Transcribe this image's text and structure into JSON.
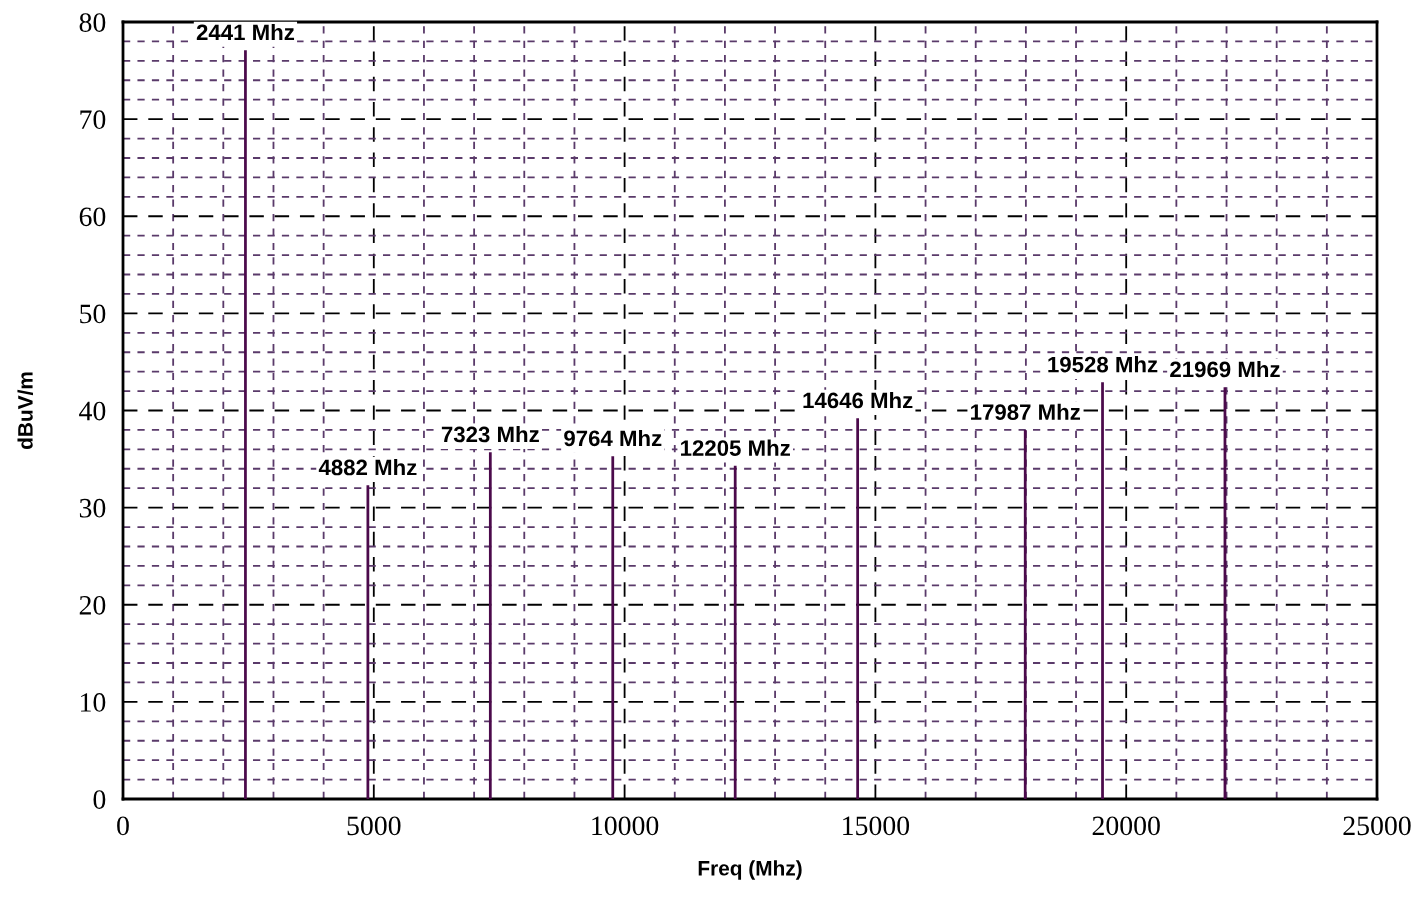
{
  "chart_data": {
    "type": "bar",
    "xlabel": "Freq (Mhz)",
    "ylabel": "dBuV/m",
    "x": [
      2441,
      4882,
      7323,
      9764,
      12205,
      14646,
      17987,
      19528,
      21969
    ],
    "values": [
      77.1,
      32.3,
      35.7,
      35.3,
      34.3,
      39.2,
      38.0,
      42.9,
      42.4
    ],
    "color": "#4b0a4b",
    "xlim": [
      0,
      25000
    ],
    "xticks": [
      0,
      {
        "value": 1000,
        "label": null
      },
      {
        "value": 2000,
        "label": null
      },
      {
        "value": 3000,
        "label": null
      },
      {
        "value": 4000,
        "label": null
      },
      5000,
      {
        "value": 6000,
        "label": null
      },
      {
        "value": 7000,
        "label": null
      },
      {
        "value": 8000,
        "label": null
      },
      {
        "value": 9000,
        "label": null
      },
      10000,
      {
        "value": 11000,
        "label": null
      },
      {
        "value": 12000,
        "label": null
      },
      {
        "value": 13000,
        "label": null
      },
      {
        "value": 14000,
        "label": null
      },
      15000,
      {
        "value": 16000,
        "label": null
      },
      {
        "value": 17000,
        "label": null
      },
      {
        "value": 18000,
        "label": null
      },
      {
        "value": 19000,
        "label": null
      },
      20000,
      {
        "value": 21000,
        "label": null
      },
      {
        "value": 22000,
        "label": null
      },
      {
        "value": 23000,
        "label": null
      },
      {
        "value": 24000,
        "label": null
      },
      25000
    ],
    "ylim": [
      0,
      80
    ],
    "yticks": [
      0,
      {
        "value": 2,
        "label": null
      },
      {
        "value": 4,
        "label": null
      },
      {
        "value": 6,
        "label": null
      },
      {
        "value": 8,
        "label": null
      },
      10,
      {
        "value": 12,
        "label": null
      },
      {
        "value": 14,
        "label": null
      },
      {
        "value": 16,
        "label": null
      },
      {
        "value": 18,
        "label": null
      },
      20,
      {
        "value": 22,
        "label": null
      },
      {
        "value": 24,
        "label": null
      },
      {
        "value": 26,
        "label": null
      },
      {
        "value": 28,
        "label": null
      },
      30,
      {
        "value": 32,
        "label": null
      },
      {
        "value": 34,
        "label": null
      },
      {
        "value": 36,
        "label": null
      },
      {
        "value": 38,
        "label": null
      },
      40,
      {
        "value": 42,
        "label": null
      },
      {
        "value": 44,
        "label": null
      },
      {
        "value": 46,
        "label": null
      },
      {
        "value": 48,
        "label": null
      },
      50,
      {
        "value": 52,
        "label": null
      },
      {
        "value": 54,
        "label": null
      },
      {
        "value": 56,
        "label": null
      },
      {
        "value": 58,
        "label": null
      },
      60,
      {
        "value": 62,
        "label": null
      },
      {
        "value": 64,
        "label": null
      },
      {
        "value": 66,
        "label": null
      },
      {
        "value": 68,
        "label": null
      },
      70,
      {
        "value": 72,
        "label": null
      },
      {
        "value": 74,
        "label": null
      },
      {
        "value": 76,
        "label": null
      },
      {
        "value": 78,
        "label": null
      },
      80
    ],
    "grid": true,
    "annotations": [
      {
        "text": "2441 Mhz",
        "x": 2441,
        "y": 77.1
      },
      {
        "text": "4882 Mhz",
        "x": 4882,
        "y": 32.3
      },
      {
        "text": "7323 Mhz",
        "x": 7323,
        "y": 35.7
      },
      {
        "text": "9764 Mhz",
        "x": 9764,
        "y": 35.3
      },
      {
        "text": "12205 Mhz",
        "x": 12205,
        "y": 34.3
      },
      {
        "text": "14646 Mhz",
        "x": 14646,
        "y": 39.2
      },
      {
        "text": "17987 Mhz",
        "x": 17987,
        "y": 38.0
      },
      {
        "text": "19528 Mhz",
        "x": 19528,
        "y": 42.9
      },
      {
        "text": "21969 Mhz",
        "x": 21969,
        "y": 42.4
      }
    ]
  }
}
